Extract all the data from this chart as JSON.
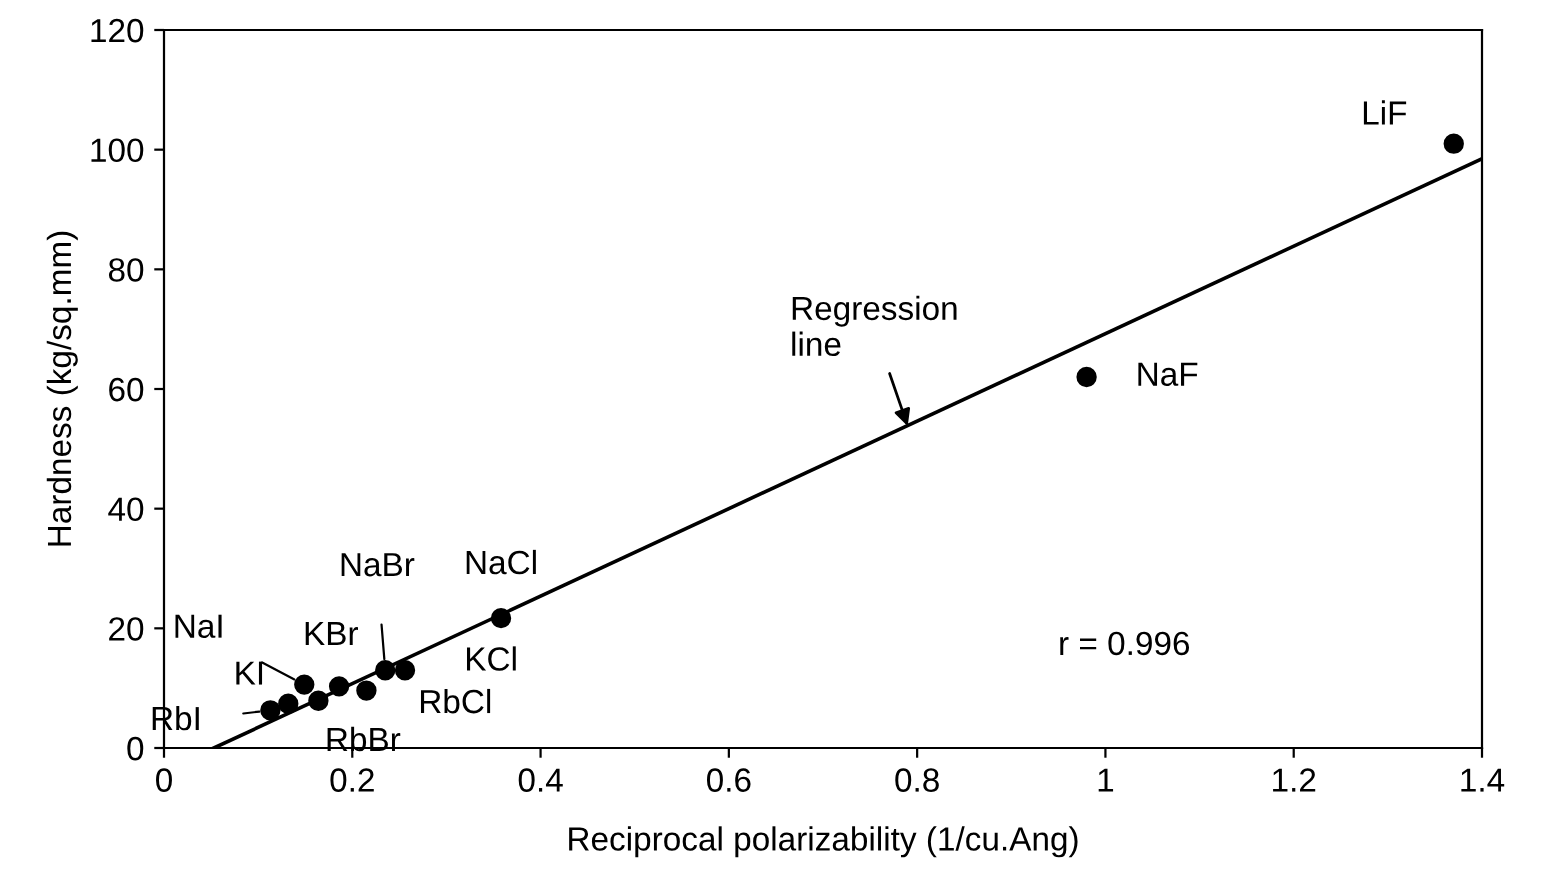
{
  "chart_data": {
    "type": "scatter",
    "xlabel": "Reciprocal polarizability (1/cu.Ang)",
    "ylabel": "Hardness (kg/sq.mm)",
    "xlim": [
      0,
      1.4
    ],
    "ylim": [
      0,
      120
    ],
    "xticks": [
      0,
      0.2,
      0.4,
      0.6,
      0.8,
      1,
      1.2,
      1.4
    ],
    "yticks": [
      0,
      20,
      40,
      60,
      80,
      100,
      120
    ],
    "grid": false,
    "legend": false,
    "series": [
      {
        "color": "#000000",
        "marker": "circle",
        "x": [
          0.113,
          0.132,
          0.149,
          0.164,
          0.186,
          0.215,
          0.235,
          0.256,
          0.358,
          0.98,
          1.37
        ],
        "values": [
          6.3,
          7.4,
          10.6,
          7.9,
          10.3,
          9.6,
          13.0,
          13.0,
          21.7,
          62,
          101
        ]
      },
      {
        "type": "line",
        "color": "#000000",
        "marker": "none",
        "line_style": "solid",
        "x": [
          0.053,
          1.4
        ],
        "values": [
          0,
          98.5
        ]
      }
    ],
    "annotations": [
      {
        "text": "RbI",
        "x": 0.113,
        "y": 6.3
      },
      {
        "text": "KI",
        "x": 0.132,
        "y": 7.4
      },
      {
        "text": "NaI",
        "x": 0.149,
        "y": 10.6
      },
      {
        "text": "RbBr",
        "x": 0.164,
        "y": 7.9
      },
      {
        "text": "KBr",
        "x": 0.186,
        "y": 10.3
      },
      {
        "text": "RbCl",
        "x": 0.215,
        "y": 9.6
      },
      {
        "text": "NaBr",
        "x": 0.235,
        "y": 13.0
      },
      {
        "text": "KCl",
        "x": 0.256,
        "y": 13.0
      },
      {
        "text": "NaCl",
        "x": 0.358,
        "y": 21.7
      },
      {
        "text": "NaF",
        "x": 0.98,
        "y": 62
      },
      {
        "text": "LiF",
        "x": 1.37,
        "y": 101
      },
      {
        "text": "Regression\nline",
        "x": 0.79,
        "y": 53.8
      },
      "r = 0.996"
    ]
  }
}
